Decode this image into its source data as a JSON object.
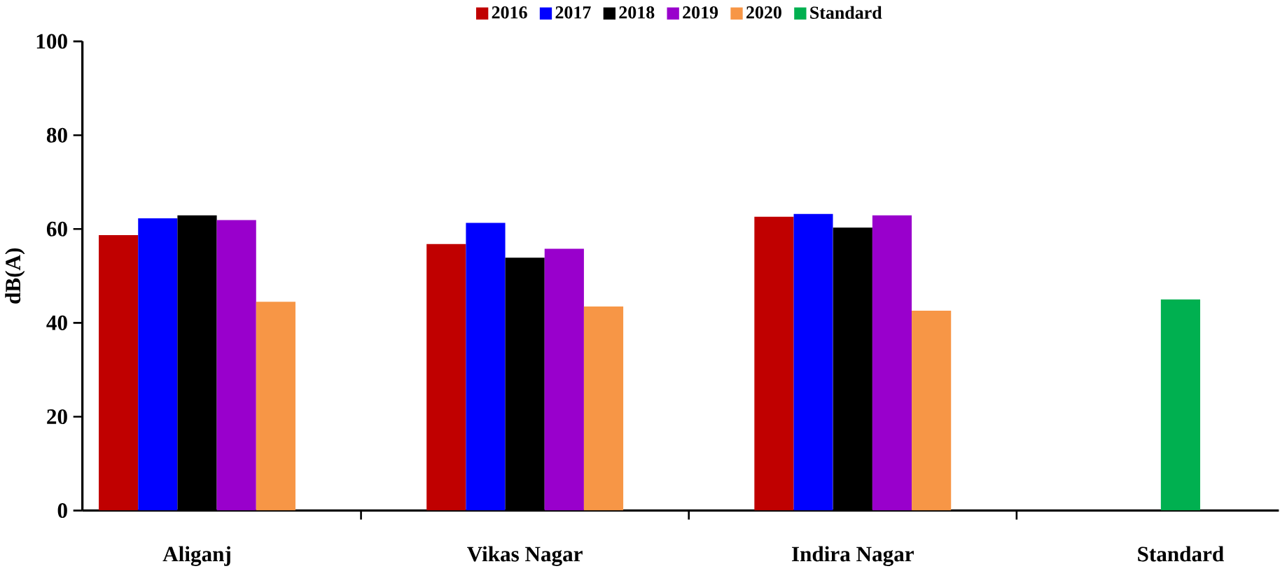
{
  "chart_data": {
    "type": "bar",
    "ylabel": "dB(A)",
    "categories": [
      "Aliganj",
      "Vikas Nagar",
      "Indira Nagar",
      "Standard"
    ],
    "series": [
      {
        "name": "2016",
        "color": "#c00000",
        "values": [
          58.7,
          56.8,
          62.6,
          null
        ]
      },
      {
        "name": "2017",
        "color": "#0000ff",
        "values": [
          62.3,
          61.3,
          63.2,
          null
        ]
      },
      {
        "name": "2018",
        "color": "#000000",
        "values": [
          62.9,
          53.9,
          60.3,
          null
        ]
      },
      {
        "name": "2019",
        "color": "#9900cc",
        "values": [
          61.9,
          55.8,
          62.9,
          null
        ]
      },
      {
        "name": "2020",
        "color": "#f79646",
        "values": [
          44.5,
          43.5,
          42.6,
          null
        ]
      },
      {
        "name": "Standard",
        "color": "#00b050",
        "values": [
          null,
          null,
          null,
          45
        ]
      }
    ],
    "ylim": [
      0,
      100
    ],
    "yticks": [
      0,
      20,
      40,
      60,
      80,
      100
    ],
    "legend": "top"
  }
}
